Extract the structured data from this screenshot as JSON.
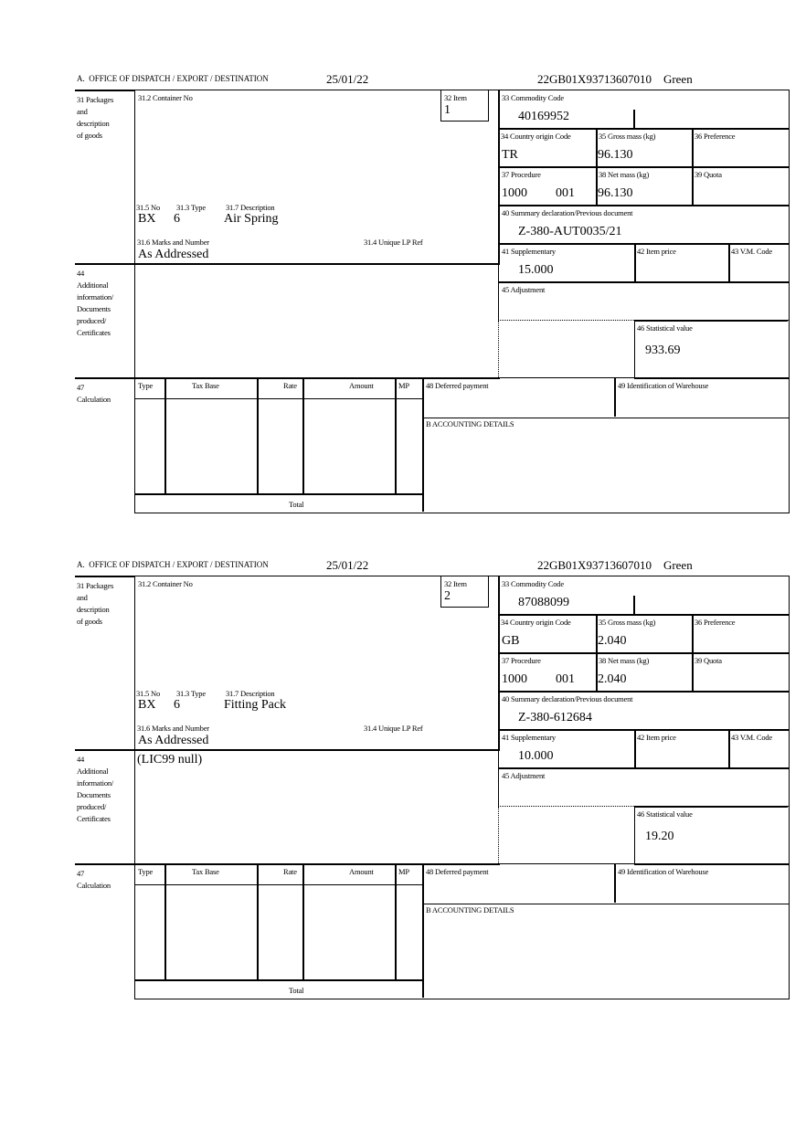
{
  "labels": {
    "office": "A.  OFFICE OF DISPATCH / EXPORT / DESTINATION",
    "packages": "31 Packages\nand\ndescription\nof goods",
    "container_no": "31.2 Container No",
    "item": "32 Item",
    "commodity_code": "33 Commodity Code",
    "country_origin": "34 Country origin Code",
    "gross_mass": "35 Gross mass (kg)",
    "preference": "36 Preference",
    "procedure": "37 Procedure",
    "net_mass": "38 Net mass (kg)",
    "quota": "39 Quota",
    "summary_declaration": "40 Summary declaration/Previous document",
    "supplementary": "41 Supplementary",
    "item_price": "42 Item price",
    "vm_code": "43 V.M. Code",
    "adjustment": "45 Adjustment",
    "statistical_value": "46 Statistical value",
    "pkg_no": "31.5 No",
    "pkg_type": "31.3 Type",
    "pkg_description": "31.7 Description",
    "marks_numbers": "31.6 Marks and Number",
    "unique_lp_ref": "31.4 Unique LP Ref",
    "additional_info": "44\nAdditional\ninformation/\nDocuments\nproduced/\nCertificates",
    "calculation": "47\nCalculation",
    "col_type": "Type",
    "col_tax_base": "Tax Base",
    "col_rate": "Rate",
    "col_amount": "Amount",
    "col_mp": "MP",
    "deferred_payment": "48 Deferred payment",
    "warehouse_id": "49 Identification of Warehouse",
    "accounting_details": "B ACCOUNTING DETAILS",
    "total": "Total"
  },
  "forms": [
    {
      "date": "25/01/22",
      "reference": "22GB01X93713607010    Green",
      "item": "1",
      "commodity_code": "40169952",
      "country_origin": "TR",
      "gross_mass": "96.130",
      "procedure_code": "1000",
      "procedure_sub": "001",
      "net_mass": "96.130",
      "previous_document": "Z-380-AUT0035/21",
      "supplementary": "15.000",
      "statistical_value": "933.69",
      "pkg_no": "BX",
      "pkg_type": "6",
      "pkg_description": "Air Spring",
      "marks_numbers": "As Addressed",
      "additional_info": ""
    },
    {
      "date": "25/01/22",
      "reference": "22GB01X93713607010    Green",
      "item": "2",
      "commodity_code": "87088099",
      "country_origin": "GB",
      "gross_mass": "2.040",
      "procedure_code": "1000",
      "procedure_sub": "001",
      "net_mass": "2.040",
      "previous_document": "Z-380-612684",
      "supplementary": "10.000",
      "statistical_value": "19.20",
      "pkg_no": "BX",
      "pkg_type": "6",
      "pkg_description": "Fitting Pack",
      "marks_numbers": "As Addressed",
      "additional_info": "(LIC99 null)"
    }
  ]
}
